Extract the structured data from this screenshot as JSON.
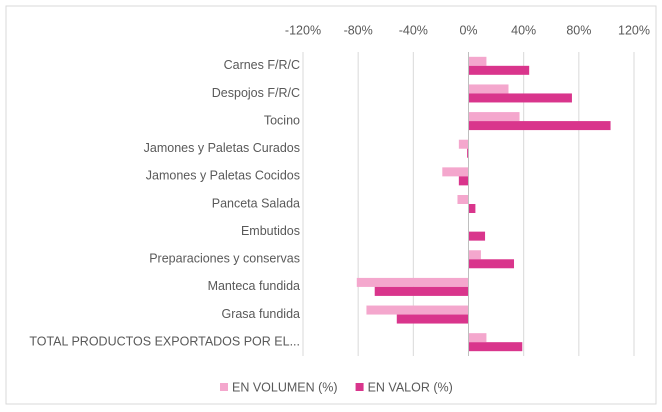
{
  "chart_data": {
    "type": "hbar",
    "categories": [
      "Carnes F/R/C",
      "Despojos F/R/C",
      "Tocino",
      "Jamones y Paletas Curados",
      "Jamones y Paletas Cocidos",
      "Panceta Salada",
      "Embutidos",
      "Preparaciones y conservas",
      "Manteca fundida",
      "Grasa fundida",
      "TOTAL PRODUCTOS EXPORTADOS POR EL..."
    ],
    "series": [
      {
        "name": "EN VOLUMEN (%)",
        "color": "#f4a7cd",
        "values": [
          13,
          29,
          37,
          -7,
          -19,
          -8,
          0,
          9,
          -81,
          -74,
          13
        ]
      },
      {
        "name": "EN VALOR (%)",
        "color": "#d9358c",
        "values": [
          44,
          75,
          103,
          -1,
          -7,
          5,
          12,
          33,
          -68,
          -52,
          39
        ]
      }
    ],
    "xlim": [
      -120,
      120
    ],
    "xticks": [
      {
        "value": -120,
        "label": "-120%"
      },
      {
        "value": -80,
        "label": "-80%"
      },
      {
        "value": -40,
        "label": "-40%"
      },
      {
        "value": 0,
        "label": "0%"
      },
      {
        "value": 40,
        "label": "40%"
      },
      {
        "value": 80,
        "label": "80%"
      },
      {
        "value": 120,
        "label": "120%"
      }
    ],
    "grid": true,
    "legend": "bottom"
  }
}
